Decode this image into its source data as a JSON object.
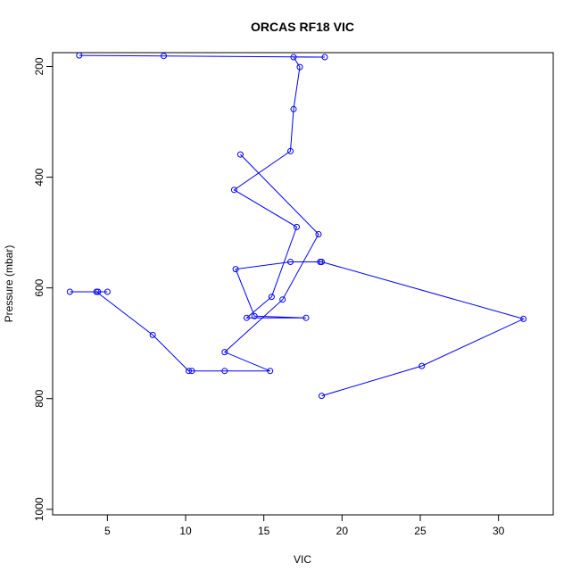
{
  "chart_data": {
    "type": "line",
    "title": "ORCAS RF18 VIC",
    "xlabel": "VIC",
    "ylabel": "Pressure (mbar)",
    "xlim": [
      1.5,
      33.5
    ],
    "ylim": [
      1010,
      175
    ],
    "y_reversed": true,
    "grid": false,
    "legend": "none",
    "x_ticks": [
      5,
      10,
      15,
      20,
      25,
      30
    ],
    "y_ticks": [
      200,
      400,
      600,
      800,
      1000
    ],
    "series": [
      {
        "color": "#0000ff",
        "marker": "open-circle",
        "points": [
          {
            "x": 18.7,
            "y": 795
          },
          {
            "x": 25.1,
            "y": 741
          },
          {
            "x": 31.6,
            "y": 656
          },
          {
            "x": 18.7,
            "y": 553
          },
          {
            "x": 18.6,
            "y": 553
          },
          {
            "x": 16.7,
            "y": 553
          },
          {
            "x": 13.2,
            "y": 566
          },
          {
            "x": 14.4,
            "y": 651
          },
          {
            "x": 17.7,
            "y": 654
          },
          {
            "x": 13.9,
            "y": 654
          },
          {
            "x": 15.5,
            "y": 616
          },
          {
            "x": 17.1,
            "y": 490
          },
          {
            "x": 13.1,
            "y": 423
          },
          {
            "x": 16.7,
            "y": 353
          },
          {
            "x": 16.9,
            "y": 277
          },
          {
            "x": 17.3,
            "y": 201
          },
          {
            "x": 16.9,
            "y": 183
          },
          {
            "x": 18.9,
            "y": 183
          },
          {
            "x": 8.6,
            "y": 181
          },
          {
            "x": 3.2,
            "y": 180
          }
        ]
      },
      {
        "color": "#0000ff",
        "marker": "open-circle",
        "points": [
          {
            "x": 2.6,
            "y": 607
          },
          {
            "x": 4.4,
            "y": 607
          },
          {
            "x": 5.0,
            "y": 607
          },
          {
            "x": 4.3,
            "y": 607
          },
          {
            "x": 7.9,
            "y": 685
          },
          {
            "x": 10.2,
            "y": 750
          },
          {
            "x": 10.4,
            "y": 750
          },
          {
            "x": 12.5,
            "y": 750
          },
          {
            "x": 15.4,
            "y": 750
          },
          {
            "x": 12.5,
            "y": 716
          },
          {
            "x": 16.2,
            "y": 621
          },
          {
            "x": 18.5,
            "y": 503
          },
          {
            "x": 13.5,
            "y": 359
          }
        ]
      }
    ]
  }
}
